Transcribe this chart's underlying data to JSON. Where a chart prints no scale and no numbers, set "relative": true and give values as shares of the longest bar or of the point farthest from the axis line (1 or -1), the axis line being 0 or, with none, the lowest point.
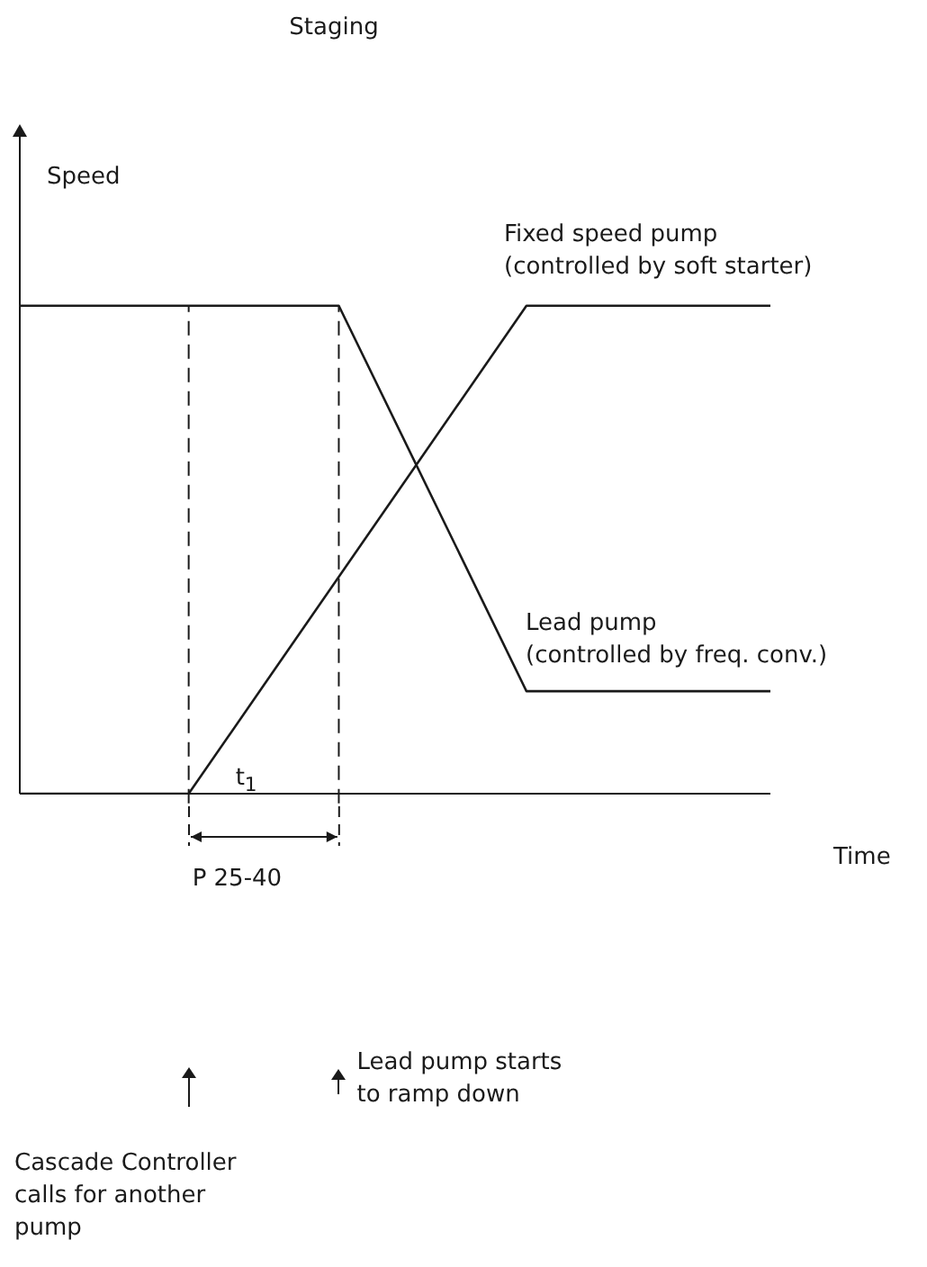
{
  "chart_data": {
    "type": "line",
    "title": "Staging",
    "xlabel": "Time",
    "ylabel": "Speed",
    "relative": true,
    "grid": false,
    "legend": false,
    "marker": "none",
    "categories": [
      null,
      null,
      null,
      null,
      null,
      null,
      null,
      null,
      null,
      null,
      null,
      null,
      null,
      null,
      null,
      null,
      null,
      null,
      null,
      null,
      null,
      null,
      null,
      null,
      null,
      null,
      null,
      null,
      null,
      null,
      null,
      null,
      null,
      null,
      null,
      null,
      null,
      null,
      null,
      null,
      null
    ],
    "series": [
      {
        "name": "Fixed speed pump\n(controlled by soft starter)",
        "color": "#1a1a1a",
        "values": [
          0,
          null,
          null,
          null,
          null,
          null,
          null,
          null,
          null,
          0,
          null,
          null,
          null,
          null,
          null,
          null,
          null,
          null,
          null,
          null,
          null,
          null,
          null,
          null,
          null,
          null,
          null,
          1,
          null,
          null,
          null,
          null,
          null,
          null,
          null,
          null,
          null,
          null,
          null,
          null,
          1
        ]
      },
      {
        "name": "Lead pump\n(controlled by freq. conv.)",
        "color": "#1a1a1a",
        "values": [
          1,
          null,
          null,
          null,
          null,
          null,
          null,
          null,
          null,
          null,
          null,
          null,
          null,
          null,
          null,
          null,
          null,
          1,
          null,
          null,
          null,
          null,
          null,
          null,
          null,
          null,
          null,
          0.21,
          null,
          null,
          null,
          null,
          null,
          null,
          null,
          null,
          null,
          null,
          null,
          null,
          0.21
        ]
      }
    ],
    "annotations": [
      "t$_{1}$",
      "P 25-40",
      "Lead pump starts\nto ramp down",
      "Cascade Controller\ncalls for another\npump"
    ]
  }
}
